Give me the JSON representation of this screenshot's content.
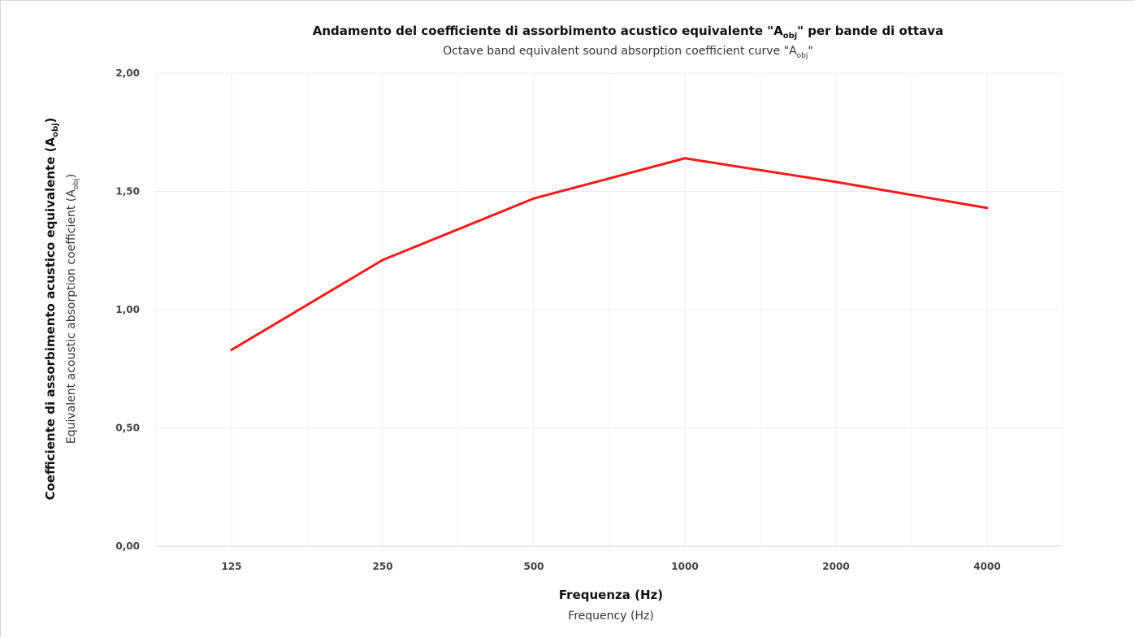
{
  "chart_data": {
    "type": "line",
    "title": "Andamento del coefficiente di assorbimento acustico equivalente \"A",
    "title_sub": "obj",
    "title_end": "\" per bande di ottava",
    "subtitle": "Octave band equivalent sound absorption coefficient curve \"A",
    "subtitle_sub": "obj",
    "subtitle_end": "\"",
    "xlabel": "Frequenza (Hz)",
    "xlabel_sub": "Frequency (Hz)",
    "ylabel": "Coefficiente di assorbimento acustico equivalente (A",
    "ylabel_sub": "obj",
    "ylabel_end": ")",
    "ylabel2": "Equivalent acoustic absorption coefficient (A",
    "ylabel2_sub": "obj",
    "ylabel2_end": ")",
    "categories": [
      "125",
      "250",
      "500",
      "1000",
      "2000",
      "4000"
    ],
    "ylim": [
      0,
      2
    ],
    "yticks": [
      "0,00",
      "0,50",
      "1,00",
      "1,50",
      "2,00"
    ],
    "ytick_values": [
      0,
      0.5,
      1,
      1.5,
      2
    ],
    "grid": true,
    "series": [
      {
        "color": "#ff1a1a",
        "values": [
          0.83,
          1.21,
          1.47,
          1.64,
          1.54,
          1.43
        ]
      }
    ]
  }
}
